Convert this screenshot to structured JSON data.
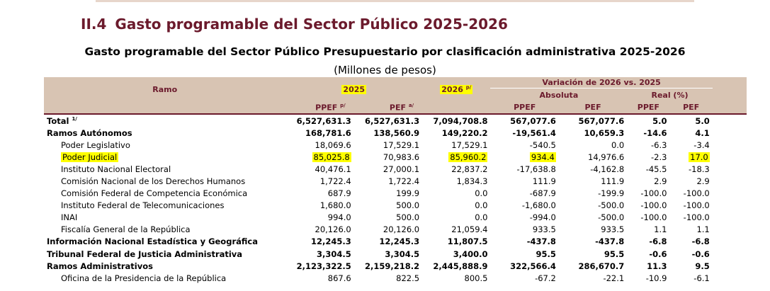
{
  "section": {
    "number": "II.4",
    "title": "Gasto programable del Sector Público 2025-2026"
  },
  "table": {
    "title": "Gasto programable del Sector Público Presupuestario por clasificación administrativa 2025-2026",
    "subtitle": "(Millones de pesos)",
    "headers": {
      "ramo": "Ramo",
      "y2025": "2025",
      "y2026": "2026",
      "y2026_note": "p/",
      "variation": "Variación de 2026 vs. 2025",
      "absoluta": "Absoluta",
      "real": "Real (%)",
      "ppef": "PPEF",
      "ppef_note": "p/",
      "pef": "PEF",
      "pef_note": "a/",
      "abs_ppef": "PPEF",
      "abs_pef": "PEF",
      "real_ppef": "PPEF",
      "real_pef": "PEF"
    },
    "rows": [
      {
        "label": "Total",
        "note": "1/",
        "ppef25": "6,527,631.3",
        "pef25": "6,527,631.3",
        "y26": "7,094,708.8",
        "abs_ppef": "567,077.6",
        "abs_pef": "567,077.6",
        "real_ppef": "5.0",
        "real_pef": "5.0"
      },
      {
        "label": "Ramos Autónomos",
        "ppef25": "168,781.6",
        "pef25": "138,560.9",
        "y26": "149,220.2",
        "abs_ppef": "-19,561.4",
        "abs_pef": "10,659.3",
        "real_ppef": "-14.6",
        "real_pef": "4.1"
      },
      {
        "label": "Poder Legislativo",
        "ppef25": "18,069.6",
        "pef25": "17,529.1",
        "y26": "17,529.1",
        "abs_ppef": "-540.5",
        "abs_pef": "0.0",
        "real_ppef": "-6.3",
        "real_pef": "-3.4"
      },
      {
        "label": "Poder Judicial",
        "ppef25": "85,025.8",
        "pef25": "70,983.6",
        "y26": "85,960.2",
        "abs_ppef": "934.4",
        "abs_pef": "14,976.6",
        "real_ppef": "-2.3",
        "real_pef": "17.0"
      },
      {
        "label": "Instituto Nacional Electoral",
        "ppef25": "40,476.1",
        "pef25": "27,000.1",
        "y26": "22,837.2",
        "abs_ppef": "-17,638.8",
        "abs_pef": "-4,162.8",
        "real_ppef": "-45.5",
        "real_pef": "-18.3"
      },
      {
        "label": "Comisión Nacional de los Derechos Humanos",
        "ppef25": "1,722.4",
        "pef25": "1,722.4",
        "y26": "1,834.3",
        "abs_ppef": "111.9",
        "abs_pef": "111.9",
        "real_ppef": "2.9",
        "real_pef": "2.9"
      },
      {
        "label": "Comisión Federal de Competencia Económica",
        "ppef25": "687.9",
        "pef25": "199.9",
        "y26": "0.0",
        "abs_ppef": "-687.9",
        "abs_pef": "-199.9",
        "real_ppef": "-100.0",
        "real_pef": "-100.0"
      },
      {
        "label": "Instituto Federal de Telecomunicaciones",
        "ppef25": "1,680.0",
        "pef25": "500.0",
        "y26": "0.0",
        "abs_ppef": "-1,680.0",
        "abs_pef": "-500.0",
        "real_ppef": "-100.0",
        "real_pef": "-100.0"
      },
      {
        "label": "INAI",
        "ppef25": "994.0",
        "pef25": "500.0",
        "y26": "0.0",
        "abs_ppef": "-994.0",
        "abs_pef": "-500.0",
        "real_ppef": "-100.0",
        "real_pef": "-100.0"
      },
      {
        "label": "Fiscalía General de la República",
        "ppef25": "20,126.0",
        "pef25": "20,126.0",
        "y26": "21,059.4",
        "abs_ppef": "933.5",
        "abs_pef": "933.5",
        "real_ppef": "1.1",
        "real_pef": "1.1"
      },
      {
        "label": "Información Nacional Estadística y Geográfica",
        "ppef25": "12,245.3",
        "pef25": "12,245.3",
        "y26": "11,807.5",
        "abs_ppef": "-437.8",
        "abs_pef": "-437.8",
        "real_ppef": "-6.8",
        "real_pef": "-6.8"
      },
      {
        "label": "Tribunal Federal de Justicia Administrativa",
        "ppef25": "3,304.5",
        "pef25": "3,304.5",
        "y26": "3,400.0",
        "abs_ppef": "95.5",
        "abs_pef": "95.5",
        "real_ppef": "-0.6",
        "real_pef": "-0.6"
      },
      {
        "label": "Ramos Administrativos",
        "ppef25": "2,123,322.5",
        "pef25": "2,159,218.2",
        "y26": "2,445,888.9",
        "abs_ppef": "322,566.4",
        "abs_pef": "286,670.7",
        "real_ppef": "11.3",
        "real_pef": "9.5"
      },
      {
        "label": "Oficina de la Presidencia de la República",
        "ppef25": "867.6",
        "pef25": "822.5",
        "y26": "800.5",
        "abs_ppef": "-67.2",
        "abs_pef": "-22.1",
        "real_ppef": "-10.9",
        "real_pef": "-6.1"
      }
    ]
  },
  "colors": {
    "accent": "#6b1a2c",
    "header_bg": "#d8c4b3",
    "highlight": "#ffff00"
  }
}
